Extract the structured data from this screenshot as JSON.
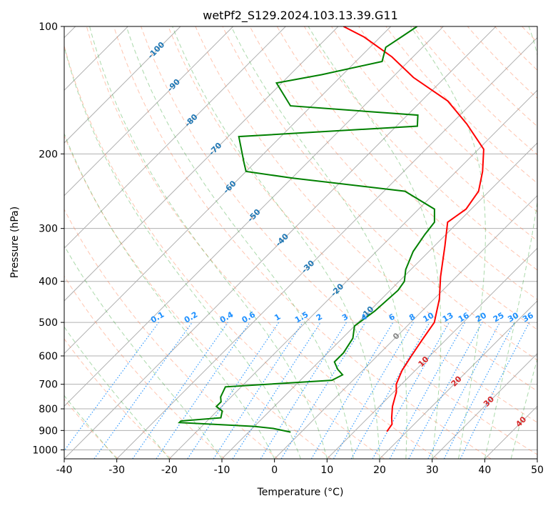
{
  "chart_data": {
    "type": "line",
    "title": "wetPf2_S129.2024.103.13.39.G11",
    "xlabel": "Temperature (°C)",
    "ylabel": "Pressure (hPa)",
    "xlim": [
      -40,
      50
    ],
    "ylim": [
      1050,
      100
    ],
    "y_scale": "log",
    "grid": true,
    "x_ticks": [
      -40,
      -30,
      -20,
      -10,
      0,
      10,
      20,
      30,
      40,
      50
    ],
    "y_ticks": [
      100,
      200,
      300,
      400,
      500,
      600,
      700,
      800,
      900,
      1000
    ],
    "skew_t_deg": 45,
    "series": [
      {
        "name": "",
        "color": "#ff0000",
        "points": [
          [
            16.2,
            905
          ],
          [
            15.8,
            870
          ],
          [
            14.5,
            840
          ],
          [
            12.5,
            790
          ],
          [
            10.5,
            730
          ],
          [
            9.0,
            700
          ],
          [
            7.5,
            650
          ],
          [
            6.5,
            600
          ],
          [
            5.5,
            550
          ],
          [
            4.5,
            500
          ],
          [
            1.0,
            440
          ],
          [
            -3.0,
            390
          ],
          [
            -8.0,
            330
          ],
          [
            -12.0,
            290
          ],
          [
            -11.0,
            270
          ],
          [
            -12.0,
            245
          ],
          [
            -15.0,
            220
          ],
          [
            -19.0,
            195
          ],
          [
            -27.0,
            170
          ],
          [
            -35.0,
            150
          ],
          [
            -46.0,
            132
          ],
          [
            -54.0,
            118
          ],
          [
            -63.0,
            106
          ],
          [
            -69.0,
            100
          ]
        ]
      },
      {
        "name": "",
        "color": "#008000",
        "points": [
          [
            -2.0,
            908
          ],
          [
            -6.0,
            890
          ],
          [
            -10.0,
            880
          ],
          [
            -25.0,
            862
          ],
          [
            -25.0,
            855
          ],
          [
            -18.0,
            840
          ],
          [
            -19.0,
            810
          ],
          [
            -21.0,
            790
          ],
          [
            -21.0,
            770
          ],
          [
            -22.0,
            750
          ],
          [
            -23.0,
            710
          ],
          [
            -4.0,
            685
          ],
          [
            -3.0,
            665
          ],
          [
            -5.0,
            645
          ],
          [
            -7.0,
            620
          ],
          [
            -7.0,
            590
          ],
          [
            -8.0,
            545
          ],
          [
            -10.0,
            510
          ],
          [
            -9.0,
            470
          ],
          [
            -8.5,
            420
          ],
          [
            -9.0,
            400
          ],
          [
            -11.0,
            375
          ],
          [
            -13.0,
            340
          ],
          [
            -14.0,
            310
          ],
          [
            -14.5,
            290
          ],
          [
            -17.0,
            270
          ],
          [
            -26.0,
            245
          ],
          [
            -50.0,
            228
          ],
          [
            -60.0,
            220
          ],
          [
            -62.0,
            210
          ],
          [
            -68.0,
            182
          ],
          [
            -36.0,
            172
          ],
          [
            -38.0,
            162
          ],
          [
            -64.0,
            154
          ],
          [
            -71.0,
            136
          ],
          [
            -64.0,
            130
          ],
          [
            -55.0,
            121
          ],
          [
            -57.0,
            112
          ],
          [
            -56.0,
            106
          ],
          [
            -55.0,
            100
          ]
        ]
      }
    ],
    "dry_adiabats_theta_K": [
      240,
      250,
      260,
      270,
      280,
      290,
      300,
      310,
      320,
      330,
      340,
      350,
      360,
      370,
      380,
      390,
      400,
      410,
      420,
      430,
      440,
      450,
      460,
      470
    ],
    "moist_adiabats_T_C": [
      -30,
      -20,
      -10,
      0,
      5,
      10,
      15,
      20,
      25,
      30,
      35,
      40,
      45
    ],
    "mixing_ratio_lines": [
      {
        "label": "0.1",
        "w": 0.1
      },
      {
        "label": "0.2",
        "w": 0.2
      },
      {
        "label": "0.4",
        "w": 0.4
      },
      {
        "label": "0.6",
        "w": 0.6
      },
      {
        "label": "1",
        "w": 1
      },
      {
        "label": "1.5",
        "w": 1.5
      },
      {
        "label": "2",
        "w": 2
      },
      {
        "label": "3",
        "w": 3
      },
      {
        "label": "4",
        "w": 4
      },
      {
        "label": "6",
        "w": 6
      },
      {
        "label": "8",
        "w": 8
      },
      {
        "label": "10",
        "w": 10
      },
      {
        "label": "13",
        "w": 13
      },
      {
        "label": "16",
        "w": 16
      },
      {
        "label": "20",
        "w": 20
      },
      {
        "label": "25",
        "w": 25
      },
      {
        "label": "30",
        "w": 30
      },
      {
        "label": "36",
        "w": 36
      }
    ],
    "isotherm_labels_blue": [
      {
        "label": "-100",
        "T": -100,
        "p": 114
      },
      {
        "label": "-90",
        "T": -90,
        "p": 138
      },
      {
        "label": "-80",
        "T": -80,
        "p": 167
      },
      {
        "label": "-70",
        "T": -70,
        "p": 195
      },
      {
        "label": "-60",
        "T": -60,
        "p": 240
      },
      {
        "label": "-50",
        "T": -50,
        "p": 280
      },
      {
        "label": "-40",
        "T": -40,
        "p": 320
      },
      {
        "label": "-30",
        "T": -30,
        "p": 370
      },
      {
        "label": "-20",
        "T": -20,
        "p": 420
      },
      {
        "label": "-10",
        "T": -10,
        "p": 475
      }
    ],
    "isotherm_labels_other": [
      {
        "label": "0",
        "T": 0,
        "p": 540,
        "color": "#888888"
      },
      {
        "label": "10",
        "T": 10,
        "p": 620,
        "color": "#d62728"
      },
      {
        "label": "20",
        "T": 20,
        "p": 690,
        "color": "#d62728"
      },
      {
        "label": "30",
        "T": 30,
        "p": 770,
        "color": "#d62728"
      },
      {
        "label": "40",
        "T": 40,
        "p": 860,
        "color": "#d62728"
      }
    ],
    "colors": {
      "isotherm_grid": "#b0b0b0",
      "dry_adiabat": "#ff7f50",
      "moist_adiabat": "#2ca02c",
      "mixing_ratio": "#1e90ff",
      "isotherm_label": "#1f77b4",
      "hot_label": "#d62728"
    }
  }
}
